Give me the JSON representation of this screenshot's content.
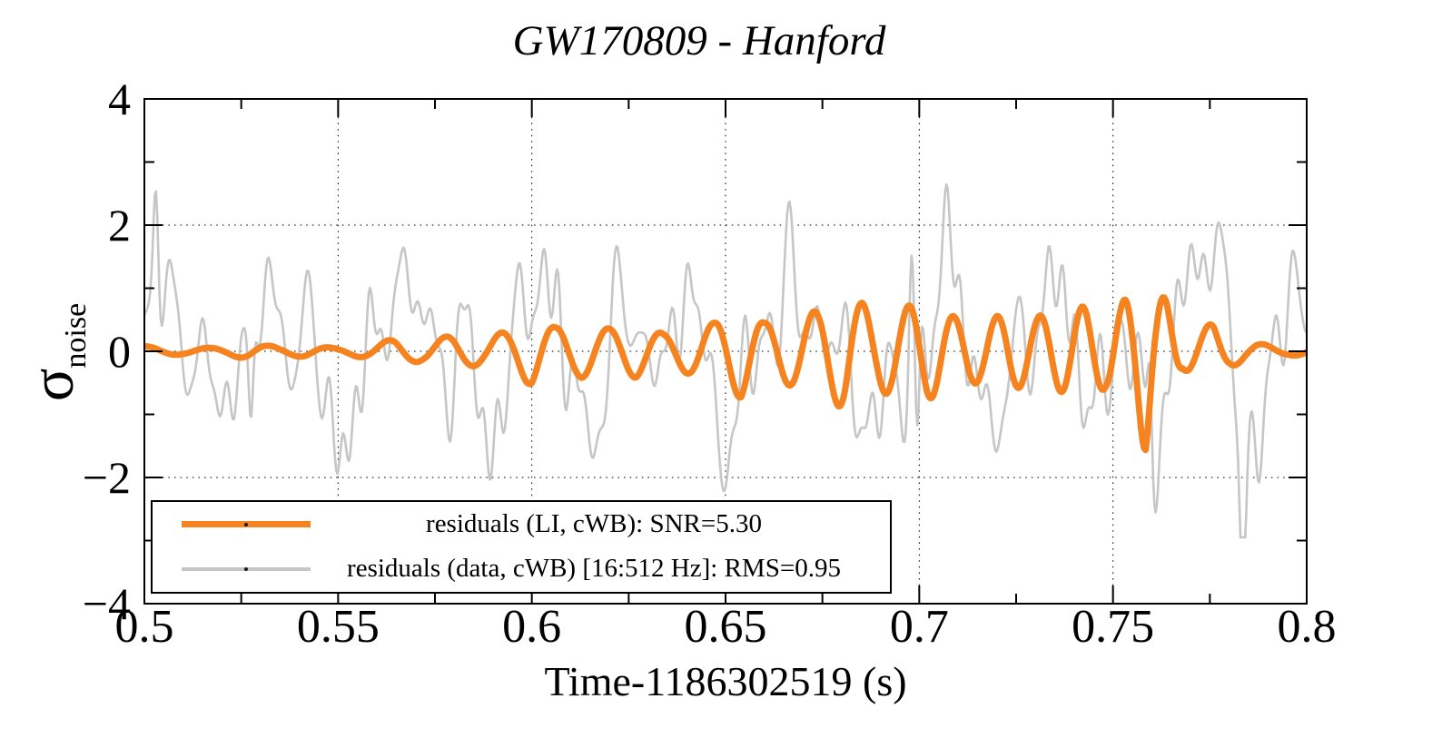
{
  "page": {
    "background": "#ffffff",
    "text_color": "#000000"
  },
  "chart_data": {
    "type": "line",
    "title": "GW170809 - Hanford",
    "xlabel": "Time-1186302519 (s)",
    "ylabel_symbol": "σ",
    "ylabel_subscript": "noise",
    "xlim": [
      0.5,
      0.8
    ],
    "ylim": [
      -4,
      4
    ],
    "x_ticks": {
      "values": [
        0.5,
        0.55,
        0.6,
        0.65,
        0.7,
        0.75,
        0.8
      ],
      "labels": [
        "0.5",
        "0.55",
        "0.6",
        "0.65",
        "0.7",
        "0.75",
        "0.8"
      ],
      "minor_values": [
        0.525,
        0.575,
        0.625,
        0.675,
        0.725,
        0.775
      ]
    },
    "y_ticks": {
      "values": [
        4,
        2,
        0,
        -2,
        -4
      ],
      "labels": [
        "4",
        "2",
        "0",
        "−2",
        "−4"
      ],
      "minor_values": [
        3,
        1,
        -1,
        -3
      ]
    },
    "grid": {
      "x_lines": [
        0.55,
        0.6,
        0.65,
        0.7,
        0.75
      ],
      "y_lines": [
        2,
        0,
        -2
      ],
      "style": "dotted",
      "color": "#000000"
    },
    "frame_color": "#000000",
    "legend": {
      "background": "#ffffff",
      "border_color": "#000000",
      "marker": "dot",
      "marker_color": "#1a1a1a",
      "entries": [
        {
          "label": "residuals (LI, cWB): SNR=5.30",
          "color": "#f5831f",
          "line_width": 7
        },
        {
          "label": "residuals (data, cWB) [16:512 Hz]: RMS=0.95",
          "color": "#c6c6c6",
          "line_width": 4
        }
      ]
    },
    "series": [
      {
        "name": "residuals (data, cWB) [16:512 Hz]",
        "rms": 0.95,
        "band_hz": [
          16,
          512
        ],
        "color": "#c6c6c6",
        "width": 2.6,
        "synthesis": {
          "kind": "band-noise",
          "dt": 0.0003,
          "seed": 170809,
          "components": 64,
          "fmin_hz": 16,
          "fmax_hz": 330,
          "rms": 0.95,
          "clip": 2.95,
          "spikes": [
            [
              0.503,
              2.3
            ],
            [
              0.5275,
              -2.4
            ],
            [
              0.698,
              2.2
            ],
            [
              0.6995,
              -2.75
            ],
            [
              0.7595,
              2.0
            ],
            [
              0.7835,
              -2.6
            ]
          ]
        }
      },
      {
        "name": "residuals (LI, cWB)",
        "snr": 5.3,
        "color": "#f5831f",
        "width": 7,
        "synthesis": {
          "kind": "chirp",
          "dt": 0.0004,
          "phase0": 1.2,
          "amp_keypoints": [
            [
              0.5,
              0.08
            ],
            [
              0.51,
              0.05
            ],
            [
              0.52,
              0.06
            ],
            [
              0.527,
              0.12
            ],
            [
              0.535,
              0.07
            ],
            [
              0.542,
              0.09
            ],
            [
              0.55,
              0.05
            ],
            [
              0.558,
              0.11
            ],
            [
              0.565,
              0.2
            ],
            [
              0.572,
              0.16
            ],
            [
              0.58,
              0.26
            ],
            [
              0.588,
              0.22
            ],
            [
              0.595,
              0.35
            ],
            [
              0.6,
              0.55
            ],
            [
              0.606,
              0.38
            ],
            [
              0.613,
              0.42
            ],
            [
              0.62,
              0.36
            ],
            [
              0.627,
              0.42
            ],
            [
              0.634,
              0.28
            ],
            [
              0.64,
              0.35
            ],
            [
              0.647,
              0.45
            ],
            [
              0.654,
              0.75
            ],
            [
              0.66,
              0.45
            ],
            [
              0.667,
              0.55
            ],
            [
              0.674,
              0.65
            ],
            [
              0.681,
              0.95
            ],
            [
              0.688,
              0.65
            ],
            [
              0.695,
              0.7
            ],
            [
              0.702,
              0.78
            ],
            [
              0.709,
              0.55
            ],
            [
              0.716,
              0.5
            ],
            [
              0.723,
              0.6
            ],
            [
              0.73,
              0.55
            ],
            [
              0.737,
              0.65
            ],
            [
              0.743,
              0.72
            ],
            [
              0.748,
              0.6
            ],
            [
              0.752,
              0.75
            ],
            [
              0.756,
              1.05
            ],
            [
              0.7585,
              1.65
            ],
            [
              0.761,
              1.0
            ],
            [
              0.764,
              0.8
            ],
            [
              0.768,
              0.3
            ],
            [
              0.772,
              0.35
            ],
            [
              0.776,
              0.45
            ],
            [
              0.78,
              0.25
            ],
            [
              0.785,
              0.15
            ],
            [
              0.79,
              0.1
            ],
            [
              0.795,
              0.06
            ],
            [
              0.8,
              0.08
            ]
          ],
          "freq_keypoints_hz": [
            [
              0.5,
              62
            ],
            [
              0.56,
              66
            ],
            [
              0.6,
              72
            ],
            [
              0.64,
              74
            ],
            [
              0.68,
              80
            ],
            [
              0.7,
              86
            ],
            [
              0.72,
              90
            ],
            [
              0.745,
              92
            ],
            [
              0.757,
              98
            ],
            [
              0.768,
              88
            ],
            [
              0.78,
              72
            ],
            [
              0.8,
              62
            ]
          ]
        }
      }
    ]
  }
}
